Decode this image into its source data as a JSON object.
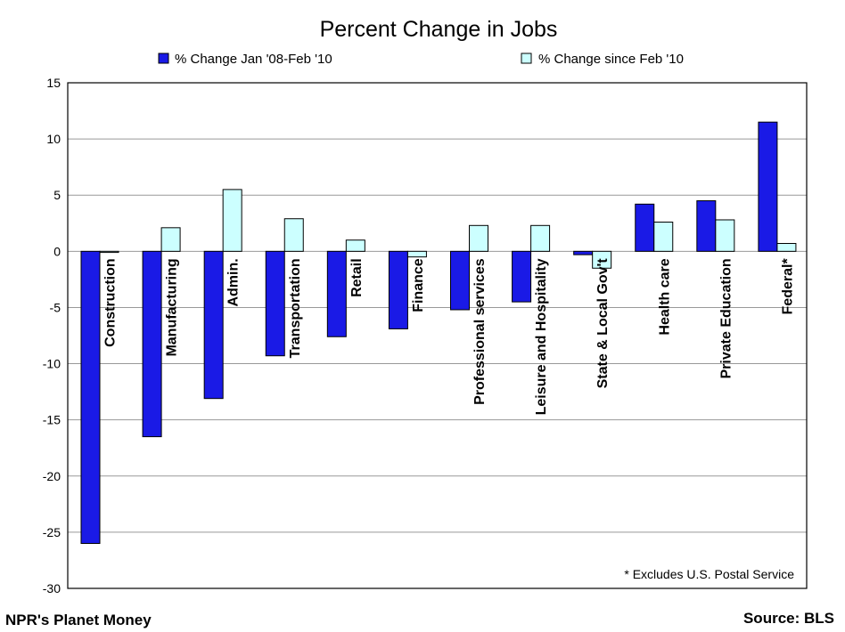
{
  "chart_data": {
    "type": "bar",
    "title": "Percent Change in Jobs",
    "categories": [
      "Construction",
      "Manufacturing",
      "Admin.",
      "Transportation",
      "Retail",
      "Finance",
      "Professional services",
      "Leisure and Hospitality",
      "State & Local Gov't",
      "Health care",
      "Private Education",
      "Federal*"
    ],
    "series": [
      {
        "name": "% Change Jan '08-Feb '10",
        "color": "#1a1ae6",
        "values": [
          -26.0,
          -16.5,
          -13.1,
          -9.3,
          -7.6,
          -6.9,
          -5.2,
          -4.5,
          -0.3,
          4.2,
          4.5,
          11.5
        ]
      },
      {
        "name": "% Change since Feb '10",
        "color": "#ccffff",
        "values": [
          -0.1,
          2.1,
          5.5,
          2.9,
          1.0,
          -0.5,
          2.3,
          2.3,
          -1.5,
          2.6,
          2.8,
          0.7
        ]
      }
    ],
    "ylim": [
      -30,
      15
    ],
    "yticks": [
      "15",
      "10",
      "5",
      "0",
      "-5",
      "-10",
      "-15",
      "-20",
      "-25",
      "-30"
    ],
    "grid": true,
    "legend_position": "top",
    "annotation": "* Excludes U.S. Postal Service"
  },
  "footer": {
    "left": "NPR's Planet Money",
    "right": "Source: BLS"
  }
}
